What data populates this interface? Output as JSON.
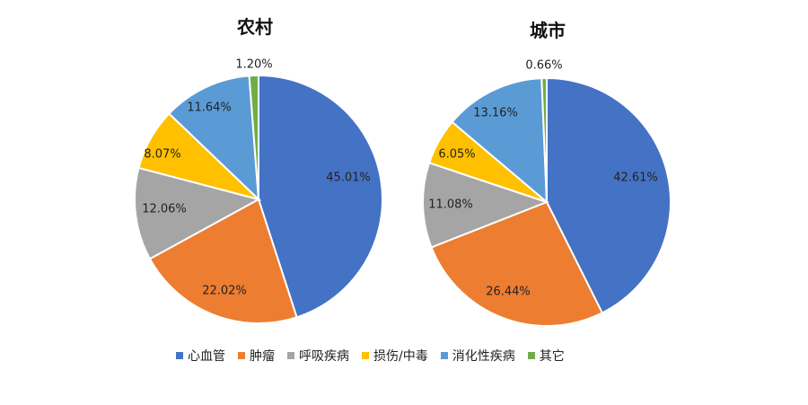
{
  "colors": {
    "heart": "#4472C4",
    "tumor": "#ED7D31",
    "respiratory": "#A5A5A5",
    "injury": "#FFC000",
    "digestive": "#5B9BD5",
    "other": "#70AD47"
  },
  "chart_data": [
    {
      "type": "pie",
      "title": "农村",
      "slices": [
        {
          "label": "心血管",
          "value": 45.01,
          "display": "45.01%",
          "color_key": "heart"
        },
        {
          "label": "肿瘤",
          "value": 22.02,
          "display": "22.02%",
          "color_key": "tumor"
        },
        {
          "label": "呼吸疾病",
          "value": 12.06,
          "display": "12.06%",
          "color_key": "respiratory"
        },
        {
          "label": "损伤/中毒",
          "value": 8.07,
          "display": "8.07%",
          "color_key": "injury"
        },
        {
          "label": "消化性疾病",
          "value": 11.64,
          "display": "11.64%",
          "color_key": "digestive"
        },
        {
          "label": "其它",
          "value": 1.2,
          "display": "1.20%",
          "color_key": "other"
        }
      ]
    },
    {
      "type": "pie",
      "title": "城市",
      "slices": [
        {
          "label": "心血管",
          "value": 42.61,
          "display": "42.61%",
          "color_key": "heart"
        },
        {
          "label": "肿瘤",
          "value": 26.44,
          "display": "26.44%",
          "color_key": "tumor"
        },
        {
          "label": "呼吸疾病",
          "value": 11.08,
          "display": "11.08%",
          "color_key": "respiratory"
        },
        {
          "label": "损伤/中毒",
          "value": 6.05,
          "display": "6.05%",
          "color_key": "injury"
        },
        {
          "label": "消化性疾病",
          "value": 13.16,
          "display": "13.16%",
          "color_key": "digestive"
        },
        {
          "label": "其它",
          "value": 0.66,
          "display": "0.66%",
          "color_key": "other"
        }
      ]
    }
  ],
  "legend": {
    "items": [
      {
        "label": "心血管",
        "color_key": "heart"
      },
      {
        "label": "肿瘤",
        "color_key": "tumor"
      },
      {
        "label": "呼吸疾病",
        "color_key": "respiratory"
      },
      {
        "label": "损伤/中毒",
        "color_key": "injury"
      },
      {
        "label": "消化性疾病",
        "color_key": "digestive"
      },
      {
        "label": "其它",
        "color_key": "other"
      }
    ]
  }
}
